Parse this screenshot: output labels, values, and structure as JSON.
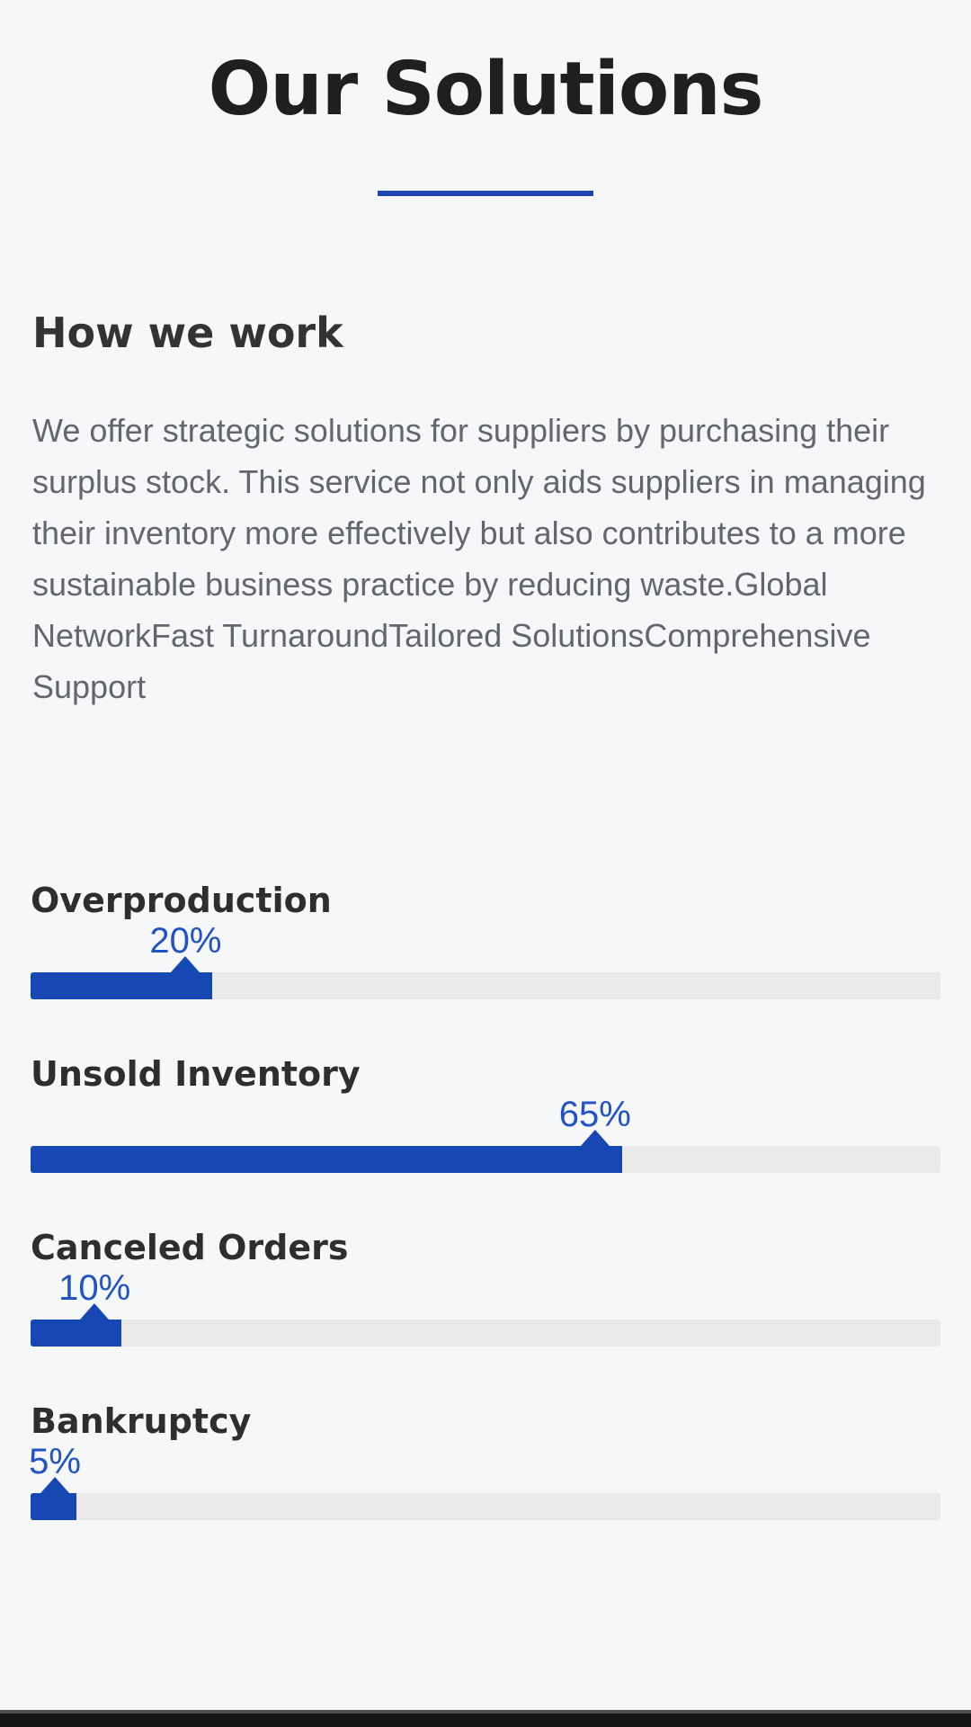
{
  "page": {
    "background_color": "#f6f7f9",
    "accent_blue": "#1f44b4",
    "bar_fill_color": "#1648b4",
    "bar_track_color": "#eceae8",
    "percent_text_color": "#2153c4"
  },
  "header": {
    "title": "Our Solutions"
  },
  "section": {
    "heading": "How we work",
    "paragraph": "We offer strategic solutions for suppliers by purchasing their surplus stock. This service not only aids suppliers in managing their inventory more effectively but also contributes to a more sustainable business practice by reducing waste.Global NetworkFast TurnaroundTailored SolutionsComprehensive Support"
  },
  "bars": [
    {
      "label": "Overproduction",
      "percent": 20,
      "percent_label": "20%"
    },
    {
      "label": "Unsold Inventory",
      "percent": 65,
      "percent_label": "65%"
    },
    {
      "label": "Canceled Orders",
      "percent": 10,
      "percent_label": "10%"
    },
    {
      "label": "Bankruptcy",
      "percent": 5,
      "percent_label": "5%"
    }
  ]
}
